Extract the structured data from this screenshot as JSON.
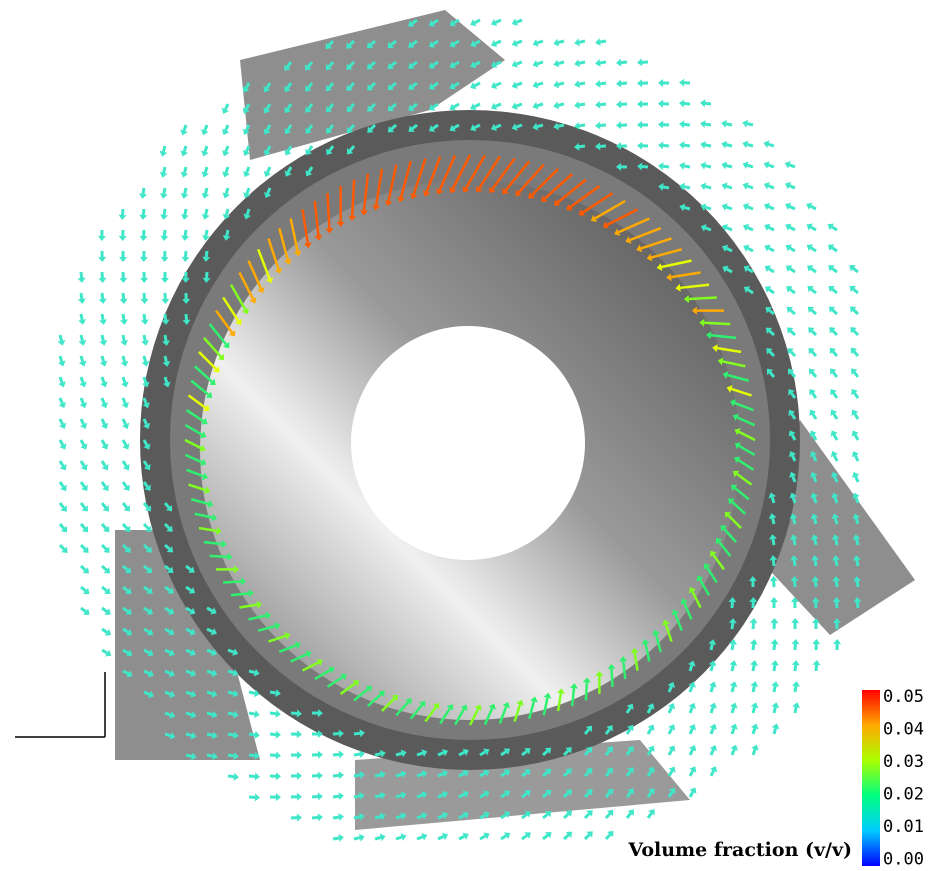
{
  "legend": {
    "title": "Volume fraction (v/v)",
    "ticks": [
      "0.05",
      "0.04",
      "0.03",
      "0.02",
      "0.01",
      "0.00"
    ]
  }
}
